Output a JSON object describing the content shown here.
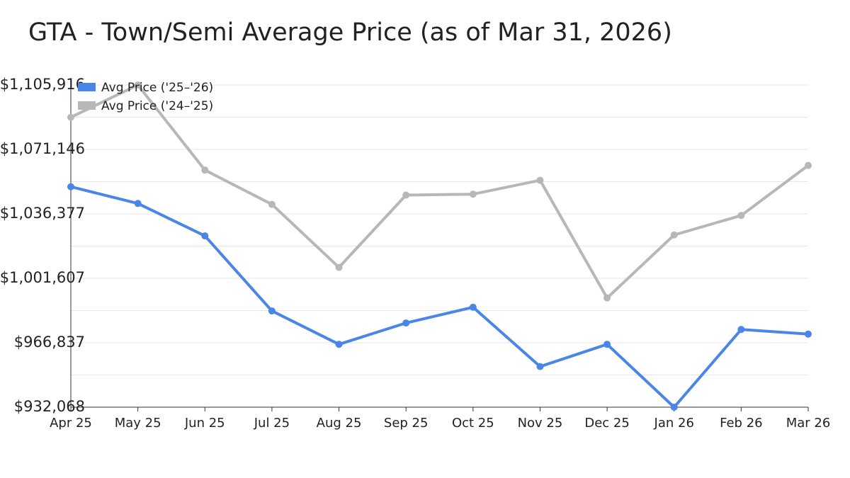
{
  "chart_data": {
    "type": "line",
    "title": "GTA - Town/Semi Average Price (as of Mar 31, 2026)",
    "xlabel": "",
    "ylabel": "",
    "categories": [
      "Apr 25",
      "May 25",
      "Jun 25",
      "Jul 25",
      "Aug 25",
      "Sep 25",
      "Oct 25",
      "Nov 25",
      "Dec 25",
      "Jan 26",
      "Feb 26",
      "Mar 26"
    ],
    "ylim": [
      932068,
      1105916
    ],
    "yticks": [
      "$1,105,916",
      "$1,071,146",
      "$1,036,377",
      "$1,001,607",
      "$966,837",
      "$932,068"
    ],
    "grid": true,
    "legend_position": "top-left",
    "series": [
      {
        "name": "Avg Price ('25–'26)",
        "color": "#4a86e8",
        "values": [
          1051000,
          1042000,
          1024500,
          984000,
          966000,
          977500,
          986000,
          954000,
          966000,
          932068,
          974000,
          971500
        ]
      },
      {
        "name": "Avg Price ('24–'25)",
        "color": "#b7b7b7",
        "values": [
          1088500,
          1105916,
          1060000,
          1041500,
          1007500,
          1046500,
          1047000,
          1054500,
          991000,
          1025000,
          1035500,
          1062500
        ]
      }
    ]
  }
}
